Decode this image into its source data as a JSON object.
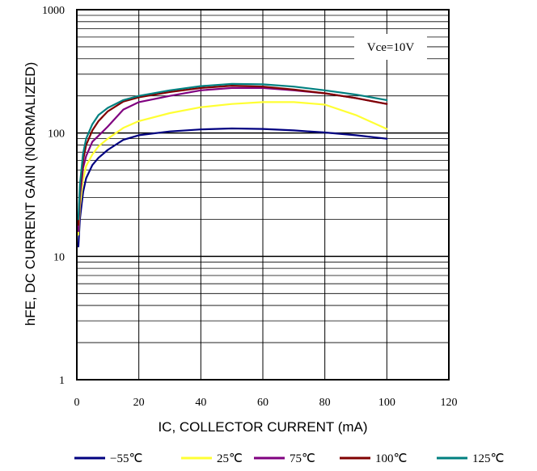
{
  "chart_data": {
    "type": "line",
    "xlabel": "IC, COLLECTOR CURRENT (mA)",
    "ylabel": "hFE, DC CURRENT GAIN (NORMALIZED)",
    "annotation": "Vce=10V",
    "xlim": [
      0,
      120
    ],
    "ylim": [
      1,
      1000
    ],
    "yscale": "log",
    "grid": true,
    "legend_position": "bottom",
    "x_ticks": [
      0,
      20,
      40,
      60,
      80,
      100,
      120
    ],
    "x_tick_labels": [
      "0",
      "20",
      "40",
      "60",
      "80",
      "100",
      "120"
    ],
    "y_ticks": [
      1,
      10,
      100,
      1000
    ],
    "y_tick_labels": [
      "1",
      "10",
      "100",
      "1000"
    ],
    "series": [
      {
        "name": "−55℃",
        "color": "#000080",
        "x": [
          0.5,
          1,
          2,
          3,
          5,
          7,
          10,
          15,
          20,
          30,
          40,
          50,
          60,
          70,
          80,
          90,
          100
        ],
        "y": [
          12,
          20,
          33,
          43,
          55,
          63,
          73,
          88,
          96,
          103,
          107,
          109,
          108,
          105,
          101,
          96,
          90
        ]
      },
      {
        "name": "25℃",
        "color": "#ffff33",
        "x": [
          0.5,
          1,
          2,
          3,
          5,
          7,
          10,
          15,
          20,
          30,
          40,
          50,
          60,
          70,
          80,
          90,
          100
        ],
        "y": [
          15,
          25,
          42,
          54,
          67,
          78,
          90,
          110,
          125,
          145,
          162,
          172,
          178,
          178,
          170,
          140,
          108
        ]
      },
      {
        "name": "75℃",
        "color": "#800080",
        "x": [
          0.5,
          1,
          2,
          3,
          5,
          7,
          10,
          15,
          20,
          30,
          40,
          50,
          60,
          70,
          80,
          90,
          100
        ],
        "y": [
          16,
          30,
          52,
          65,
          85,
          95,
          113,
          155,
          178,
          200,
          222,
          232,
          232,
          222,
          210,
          192,
          172
        ]
      },
      {
        "name": "100℃",
        "color": "#800000",
        "x": [
          0.5,
          1,
          2,
          3,
          5,
          7,
          10,
          15,
          20,
          30,
          40,
          50,
          60,
          70,
          80,
          90,
          100
        ],
        "y": [
          18,
          35,
          60,
          80,
          105,
          125,
          150,
          180,
          195,
          215,
          232,
          242,
          238,
          225,
          210,
          192,
          172
        ]
      },
      {
        "name": "125℃",
        "color": "#008080",
        "x": [
          0.5,
          1,
          2,
          3,
          5,
          7,
          10,
          15,
          20,
          30,
          40,
          50,
          60,
          70,
          80,
          90,
          100
        ],
        "y": [
          20,
          38,
          68,
          90,
          118,
          140,
          160,
          185,
          200,
          222,
          240,
          250,
          248,
          238,
          222,
          205,
          185
        ]
      }
    ]
  }
}
